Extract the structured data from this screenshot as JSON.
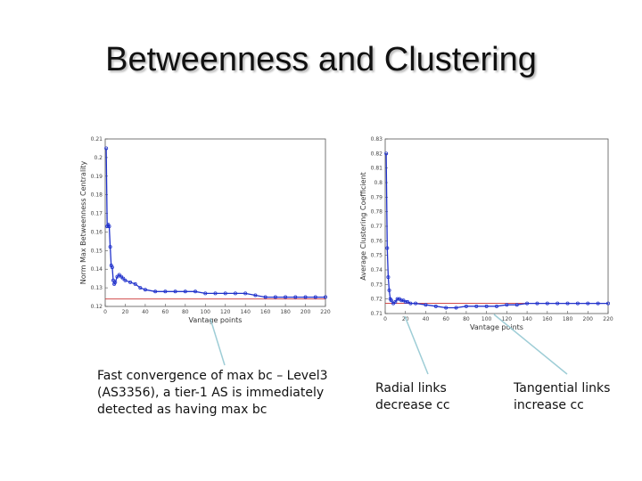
{
  "slide": {
    "title": "Betweenness and Clustering"
  },
  "captions": {
    "left": "Fast convergence of max bc – Level3 (AS3356), a tier-1 AS is immediately detected as having max bc",
    "middle": "Radial links decrease cc",
    "right": "Tangential links increase cc"
  },
  "colors": {
    "series": "#2233cc",
    "reference": "#cc3333",
    "pointer": "#9ecdd6"
  },
  "chart_data": [
    {
      "type": "line",
      "title": "",
      "xlabel": "Vantage points",
      "ylabel": "Norm Max Betweenness Centrality",
      "xlim": [
        0,
        220
      ],
      "ylim": [
        0.12,
        0.21
      ],
      "xticks": [
        0,
        20,
        40,
        60,
        80,
        100,
        120,
        140,
        160,
        180,
        200,
        220
      ],
      "yticks": [
        0.12,
        0.13,
        0.14,
        0.15,
        0.16,
        0.17,
        0.18,
        0.19,
        0.2,
        0.21
      ],
      "ytick_labels": [
        "0.12",
        "0.13",
        "0.14",
        "0.15",
        "0.16",
        "0.17",
        "0.18",
        "0.19",
        "0.2",
        "0.21"
      ],
      "reference_line": 0.124,
      "series": [
        {
          "name": "max betweenness",
          "x": [
            1,
            2,
            3,
            4,
            5,
            6,
            7,
            8,
            9,
            10,
            12,
            14,
            16,
            18,
            20,
            25,
            30,
            35,
            40,
            50,
            60,
            70,
            80,
            90,
            100,
            110,
            120,
            130,
            140,
            150,
            160,
            170,
            180,
            190,
            200,
            210,
            220
          ],
          "y": [
            0.205,
            0.163,
            0.164,
            0.163,
            0.152,
            0.142,
            0.141,
            0.134,
            0.132,
            0.133,
            0.136,
            0.137,
            0.136,
            0.135,
            0.134,
            0.133,
            0.132,
            0.13,
            0.129,
            0.128,
            0.128,
            0.128,
            0.128,
            0.128,
            0.127,
            0.127,
            0.127,
            0.127,
            0.127,
            0.126,
            0.125,
            0.125,
            0.125,
            0.125,
            0.125,
            0.125,
            0.125
          ]
        }
      ]
    },
    {
      "type": "line",
      "title": "",
      "xlabel": "Vantage points",
      "ylabel": "Average Clustering Coefficient",
      "xlim": [
        0,
        220
      ],
      "ylim": [
        0.71,
        0.83
      ],
      "xticks": [
        0,
        20,
        40,
        60,
        80,
        100,
        120,
        140,
        160,
        180,
        200,
        220
      ],
      "yticks": [
        0.71,
        0.72,
        0.73,
        0.74,
        0.75,
        0.76,
        0.77,
        0.78,
        0.79,
        0.8,
        0.81,
        0.82,
        0.83
      ],
      "ytick_labels": [
        "0.71",
        "0.72",
        "0.73",
        "0.74",
        "0.75",
        "0.76",
        "0.77",
        "0.78",
        "0.79",
        "0.8",
        "0.81",
        "0.82",
        "0.83"
      ],
      "reference_line": 0.717,
      "series": [
        {
          "name": "average clustering",
          "x": [
            1,
            2,
            3,
            4,
            5,
            6,
            8,
            10,
            12,
            14,
            16,
            18,
            20,
            22,
            25,
            30,
            40,
            50,
            60,
            70,
            80,
            90,
            100,
            110,
            120,
            130,
            140,
            150,
            160,
            170,
            180,
            190,
            200,
            210,
            220
          ],
          "y": [
            0.82,
            0.755,
            0.735,
            0.726,
            0.72,
            0.719,
            0.717,
            0.718,
            0.72,
            0.72,
            0.719,
            0.719,
            0.718,
            0.718,
            0.717,
            0.717,
            0.716,
            0.715,
            0.714,
            0.714,
            0.715,
            0.715,
            0.715,
            0.715,
            0.716,
            0.716,
            0.717,
            0.717,
            0.717,
            0.717,
            0.717,
            0.717,
            0.717,
            0.717,
            0.717
          ]
        }
      ]
    }
  ]
}
